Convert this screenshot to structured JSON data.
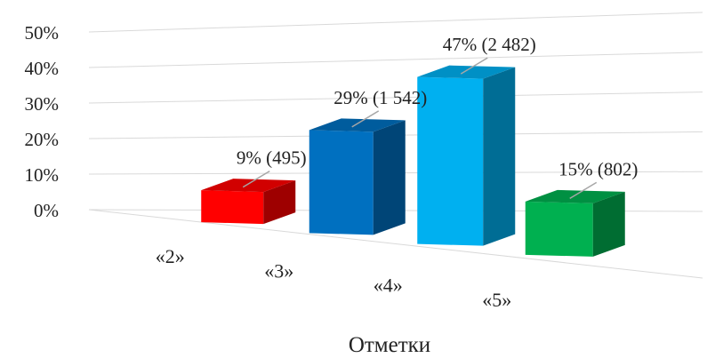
{
  "chart_data": {
    "type": "bar",
    "title": "",
    "xlabel": "Отметки",
    "ylabel": "",
    "ylim": [
      0,
      50
    ],
    "y_ticks": [
      "0%",
      "10%",
      "20%",
      "30%",
      "40%",
      "50%"
    ],
    "grid": true,
    "categories": [
      "«2»",
      "«3»",
      "«4»",
      "«5»"
    ],
    "values": [
      9,
      29,
      47,
      15
    ],
    "counts": [
      495,
      1542,
      2482,
      802
    ],
    "data_labels": [
      "9% (495)",
      "29% (1 542)",
      "47% (2 482)",
      "15% (802)"
    ],
    "colors": [
      "#ff0000",
      "#0070c0",
      "#00b0f0",
      "#00b050"
    ],
    "style": "3d-perspective"
  }
}
